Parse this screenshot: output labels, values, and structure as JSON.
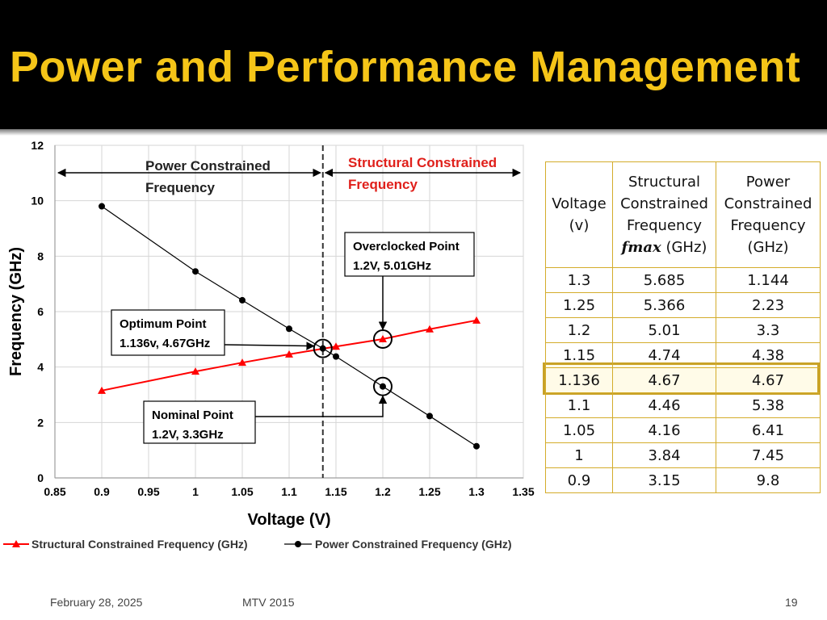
{
  "slide": {
    "title": "Power and Performance  Management",
    "footer_date": "February 28, 2025",
    "footer_center": "MTV 2015",
    "page_number": "19"
  },
  "chart_data": {
    "type": "line",
    "xlabel": "Voltage (V)",
    "ylabel": "Frequency (GHz)",
    "xlim": [
      0.85,
      1.35
    ],
    "ylim": [
      0,
      12
    ],
    "x_ticks": [
      "0.85",
      "0.9",
      "0.95",
      "1",
      "1.05",
      "1.1",
      "1.15",
      "1.2",
      "1.25",
      "1.3",
      "1.35"
    ],
    "y_ticks": [
      "0",
      "2",
      "4",
      "6",
      "8",
      "10",
      "12"
    ],
    "grid": true,
    "legend_position": "bottom",
    "series": [
      {
        "name": "Structural Constrained Frequency (GHz)",
        "color": "#ff0000",
        "marker": "triangle",
        "x": [
          0.9,
          1,
          1.05,
          1.1,
          1.15,
          1.2,
          1.25,
          1.3
        ],
        "y": [
          3.15,
          3.84,
          4.16,
          4.46,
          4.74,
          5.01,
          5.366,
          5.685
        ]
      },
      {
        "name": "Power Constrained Frequency (GHz)",
        "color": "#000000",
        "marker": "circle",
        "x": [
          0.9,
          1,
          1.05,
          1.1,
          1.136,
          1.15,
          1.2,
          1.25,
          1.3
        ],
        "y": [
          9.8,
          7.45,
          6.41,
          5.38,
          4.67,
          4.38,
          3.3,
          2.23,
          1.144
        ]
      }
    ],
    "vline_x": 1.136,
    "region_labels": {
      "power": [
        "Power Constrained",
        "Frequency"
      ],
      "structural": [
        "Structural Constrained",
        "Frequency"
      ]
    },
    "annotations": [
      {
        "id": "overclocked",
        "lines": [
          "Overclocked Point",
          "1.2V, 5.01GHz"
        ],
        "x": 1.2,
        "y": 5.01
      },
      {
        "id": "optimum",
        "lines": [
          "Optimum Point",
          "1.136v, 4.67GHz"
        ],
        "x": 1.136,
        "y": 4.67
      },
      {
        "id": "nominal",
        "lines": [
          "Nominal Point",
          "1.2V, 3.3GHz"
        ],
        "x": 1.2,
        "y": 3.3
      }
    ]
  },
  "table": {
    "headers": {
      "voltage": [
        "Voltage",
        "(v)"
      ],
      "structural": [
        "Structural",
        "Constrained",
        "Frequency"
      ],
      "structural_symbol": "fmax",
      "structural_unit": " (GHz)",
      "power": [
        "Power",
        "Constrained",
        "Frequency",
        "(GHz)"
      ]
    },
    "rows": [
      [
        "1.3",
        "5.685",
        "1.144"
      ],
      [
        "1.25",
        "5.366",
        "2.23"
      ],
      [
        "1.2",
        "5.01",
        "3.3"
      ],
      [
        "1.15",
        "4.74",
        "4.38"
      ],
      [
        "1.136",
        "4.67",
        "4.67"
      ],
      [
        "1.1",
        "4.46",
        "5.38"
      ],
      [
        "1.05",
        "4.16",
        "6.41"
      ],
      [
        "1",
        "3.84",
        "7.45"
      ],
      [
        "0.9",
        "3.15",
        "9.8"
      ]
    ],
    "highlight_row": 4,
    "border_color": "#d4ac2b"
  }
}
